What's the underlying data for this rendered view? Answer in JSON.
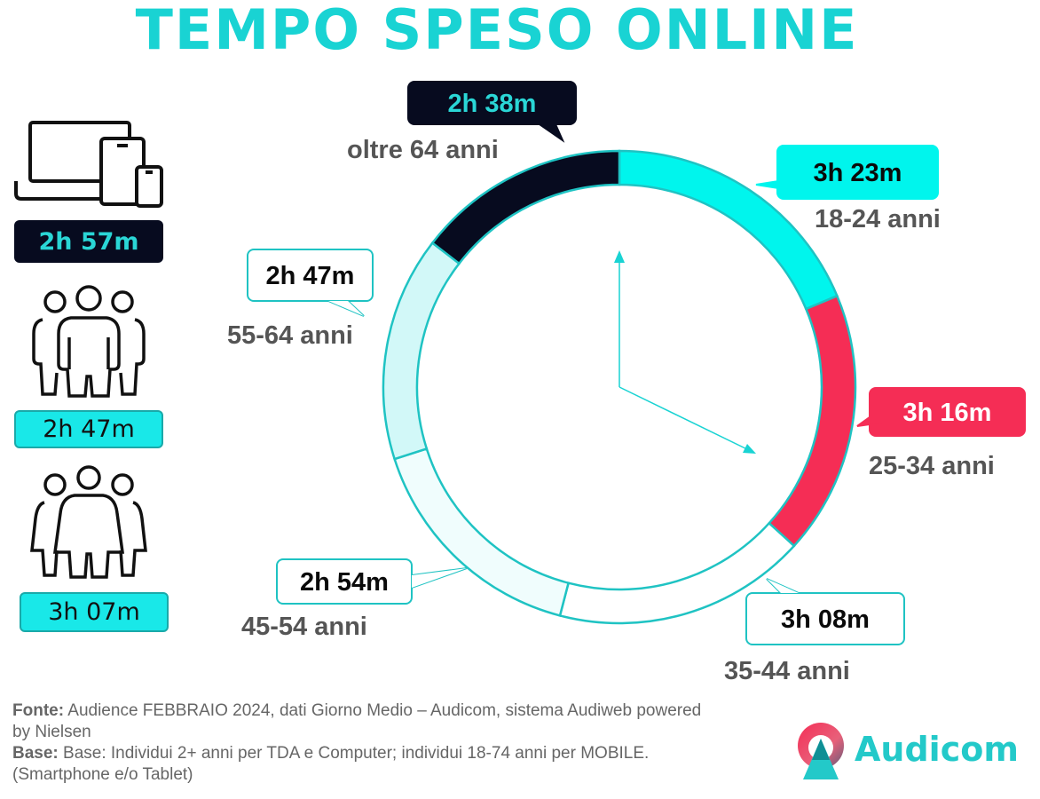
{
  "title": "TEMPO SPESO ONLINE",
  "icons": {
    "device": "devices-icon",
    "men": "men-group-icon",
    "women": "women-group-icon"
  },
  "totals": {
    "all": "2h 57m",
    "men": "2h 47m",
    "women": "3h 07m"
  },
  "chart_data": {
    "type": "pie",
    "categories": [
      "18-24 anni",
      "25-34 anni",
      "35-44 anni",
      "45-54 anni",
      "55-64 anni",
      "oltre 64 anni"
    ],
    "values": [
      203,
      196,
      188,
      174,
      167,
      158
    ],
    "data_labels": [
      "3h 23m",
      "3h 16m",
      "3h 08m",
      "2h 54m",
      "2h 47m",
      "2h 38m"
    ],
    "colors": [
      "#00f5ed",
      "#f52d55",
      "#ffffff",
      "#f0fdfd",
      "#d2f8f8",
      "#070b1f"
    ]
  },
  "footer": {
    "source_label": "Fonte:",
    "source_text": "Audience FEBBRAIO 2024, dati Giorno Medio – Audicom, sistema Audiweb powered by Nielsen",
    "base_label": "Base:",
    "base_text": "Base:  Individui 2+ anni per TDA e Computer; individui 18-74 anni per MOBILE.(Smartphone e/o Tablet)"
  },
  "logo": {
    "text": "Audicom"
  }
}
